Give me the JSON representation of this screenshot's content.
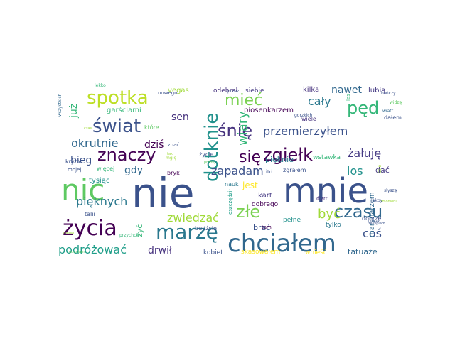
{
  "words": [
    {
      "text": "nie",
      "color": "#3b528b"
    },
    {
      "text": "mnie",
      "color": "#3b528b"
    },
    {
      "text": "nic",
      "color": "#5ec962"
    },
    {
      "text": "chciałem",
      "color": "#31688e"
    },
    {
      "text": "marzę",
      "color": "#2a788e"
    },
    {
      "text": "życia",
      "color": "#440154"
    },
    {
      "text": "spotka",
      "color": "#bddf26"
    },
    {
      "text": "świat",
      "color": "#3b528b"
    },
    {
      "text": "znaczy",
      "color": "#440154"
    },
    {
      "text": "zgiełk",
      "color": "#440154"
    },
    {
      "text": "śnię",
      "color": "#46327e"
    },
    {
      "text": "czasu",
      "color": "#31688e"
    },
    {
      "text": "dotknie",
      "color": "#21918c"
    },
    {
      "text": "pęd",
      "color": "#35b779"
    },
    {
      "text": "złe",
      "color": "#7ad151"
    },
    {
      "text": "mieć",
      "color": "#7ad151"
    },
    {
      "text": "się",
      "color": "#440154"
    },
    {
      "text": "przemierzyłem",
      "color": "#3b528b"
    },
    {
      "text": "zapadam",
      "color": "#3b528b"
    },
    {
      "text": "wiary",
      "color": "#35b779"
    },
    {
      "text": "okrutnie",
      "color": "#31688e"
    },
    {
      "text": "zwiedzać",
      "color": "#a0da39"
    },
    {
      "text": "pięknych",
      "color": "#2a788e"
    },
    {
      "text": "podróżować",
      "color": "#1f9e89"
    },
    {
      "text": "być",
      "color": "#a0da39"
    },
    {
      "text": "żałuję",
      "color": "#443983"
    },
    {
      "text": "cały",
      "color": "#2a788e"
    },
    {
      "text": "nawet",
      "color": "#31688e"
    },
    {
      "text": "los",
      "color": "#21918c"
    },
    {
      "text": "coś",
      "color": "#3b528b"
    },
    {
      "text": "bieg",
      "color": "#3b528b"
    },
    {
      "text": "gdy",
      "color": "#31688e"
    },
    {
      "text": "dziś",
      "color": "#440154"
    },
    {
      "text": "sen",
      "color": "#46327e"
    },
    {
      "text": "drwił",
      "color": "#46327e"
    },
    {
      "text": "już",
      "color": "#35b779"
    },
    {
      "text": "jest",
      "color": "#fde725"
    },
    {
      "text": "tatuaże",
      "color": "#31688e"
    },
    {
      "text": "garściami",
      "color": "#35b779"
    },
    {
      "text": "marynarzem",
      "color": "#31688e"
    },
    {
      "text": "pięknie",
      "color": "#2a788e"
    },
    {
      "text": "brać",
      "color": "#3b528b"
    },
    {
      "text": "dać",
      "color": "#443983"
    },
    {
      "text": "tysiąc",
      "color": "#21918c"
    },
    {
      "text": "żyć",
      "color": "#35b779"
    },
    {
      "text": "kart",
      "color": "#443983"
    },
    {
      "text": "lubią",
      "color": "#443983"
    },
    {
      "text": "kilka",
      "color": "#46327e"
    },
    {
      "text": "vegas",
      "color": "#a0da39"
    },
    {
      "text": "odebrał",
      "color": "#46327e"
    },
    {
      "text": "siebie",
      "color": "#443983"
    },
    {
      "text": "piosenkarzem",
      "color": "#440154"
    },
    {
      "text": "skasowałem",
      "color": "#fde725"
    },
    {
      "text": "wnieść",
      "color": "#fde725"
    },
    {
      "text": "kobiet",
      "color": "#3b528b"
    },
    {
      "text": "tylko",
      "color": "#2a788e"
    },
    {
      "text": "pełne",
      "color": "#21918c"
    },
    {
      "text": "dobrego",
      "color": "#440154"
    },
    {
      "text": "nauk",
      "color": "#2a788e"
    },
    {
      "text": "wstawka",
      "color": "#35b779"
    },
    {
      "text": "zgrałem",
      "color": "#3b528b"
    },
    {
      "text": "budźcie",
      "color": "#3b528b"
    },
    {
      "text": "życie",
      "color": "#3b528b"
    },
    {
      "text": "bryk",
      "color": "#440154"
    },
    {
      "text": "więcej",
      "color": "#35b779"
    },
    {
      "text": "które",
      "color": "#5ec962"
    },
    {
      "text": "znać",
      "color": "#3b528b"
    },
    {
      "text": "wiele",
      "color": "#46327e"
    },
    {
      "text": "dałem",
      "color": "#3b528b"
    },
    {
      "text": "dobrze",
      "color": "#3b528b"
    },
    {
      "text": "dym",
      "color": "#46327e"
    },
    {
      "text": "talii",
      "color": "#3b528b"
    },
    {
      "text": "przychcili",
      "color": "#35b779"
    },
    {
      "text": "oszczędził",
      "color": "#1f9e89"
    },
    {
      "text": "itd",
      "color": "#3b528b"
    },
    {
      "text": "tam",
      "color": "#440154"
    },
    {
      "text": "krym",
      "color": "#3b528b"
    },
    {
      "text": "mojej",
      "color": "#3b528b"
    },
    {
      "text": "nowego",
      "color": "#3b528b"
    },
    {
      "text": "lekko",
      "color": "#35b779"
    },
    {
      "text": "wszystkich",
      "color": "#31688e"
    },
    {
      "text": "czas",
      "color": "#a0da39"
    },
    {
      "text": "gorzkich",
      "color": "#3b528b"
    },
    {
      "text": "przez",
      "color": "#3b528b"
    },
    {
      "text": "las",
      "color": "#35b779"
    },
    {
      "text": "kończy",
      "color": "#3b528b"
    },
    {
      "text": "widzę",
      "color": "#5ec962"
    },
    {
      "text": "wiatr",
      "color": "#31688e"
    },
    {
      "text": "słyszę",
      "color": "#3b528b"
    },
    {
      "text": "zmonioni",
      "color": "#a0da39"
    },
    {
      "text": "jakby",
      "color": "#3b528b"
    },
    {
      "text": "rzeczy",
      "color": "#3b528b"
    },
    {
      "text": "zasypiam",
      "color": "#3b528b"
    },
    {
      "text": "sprawi",
      "color": "#a0da39"
    },
    {
      "text": "oddalam",
      "color": "#5ec962"
    },
    {
      "text": "mgię",
      "color": "#a0da39"
    },
    {
      "text": "tak",
      "color": "#a0da39"
    },
    {
      "text": "próbuj",
      "color": "#5ec962"
    },
    {
      "text": "sale",
      "color": "#a0da39"
    }
  ]
}
